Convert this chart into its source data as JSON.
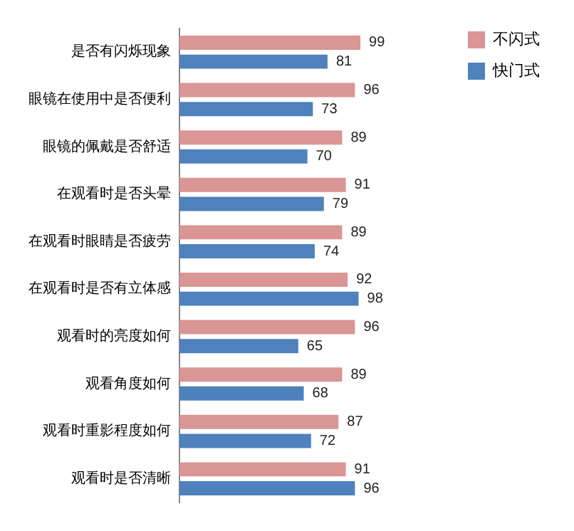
{
  "chart_data": {
    "type": "bar",
    "orientation": "horizontal",
    "categories": [
      "是否有闪烁现象",
      "眼镜在使用中是否便利",
      "眼镜的佩戴是否舒适",
      "在观看时是否头晕",
      "在观看时眼睛是否疲劳",
      "在观看时是否有立体感",
      "观看时的亮度如何",
      "观看角度如何",
      "观看时重影程度如何",
      "观看时是否清晰"
    ],
    "series": [
      {
        "name": "不闪式",
        "color": "#d99694",
        "values": [
          99,
          96,
          89,
          91,
          89,
          92,
          96,
          89,
          87,
          91
        ]
      },
      {
        "name": "快门式",
        "color": "#4f81bd",
        "values": [
          81,
          73,
          70,
          79,
          74,
          98,
          65,
          68,
          72,
          96
        ]
      }
    ],
    "data_labels": true,
    "legend": "top right",
    "grid": false,
    "tick_labels": "y"
  }
}
